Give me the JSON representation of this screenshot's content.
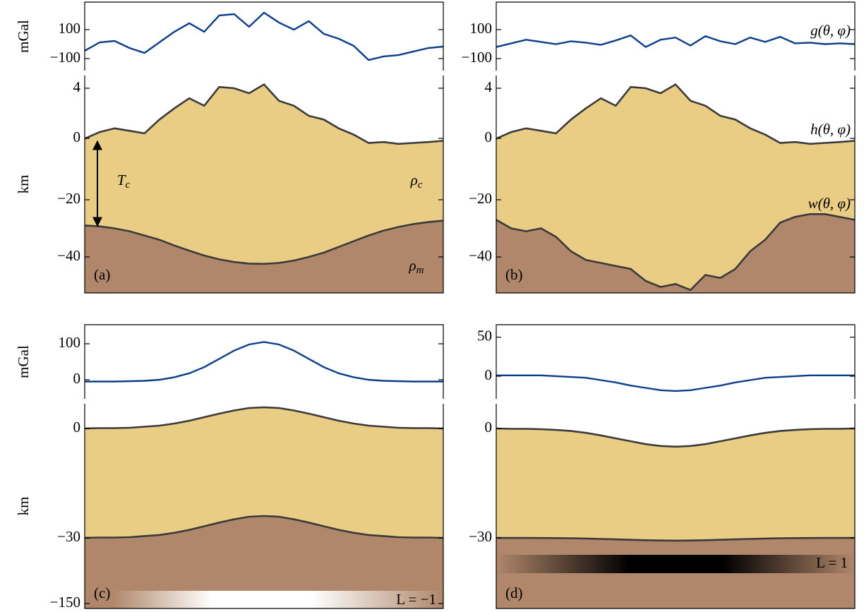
{
  "chart_data": [
    {
      "type": "line",
      "ylabel": "mGal",
      "ylim": [
        -183,
        290
      ],
      "yticks": [
        {
          "value": -100,
          "label": "−100"
        },
        100
      ],
      "series": [
        {
          "color": "#0b3d8c",
          "values": [
            -46,
            12,
            22,
            -27,
            -61,
            12,
            85,
            144,
            85,
            198,
            207,
            120,
            217,
            149,
            100,
            159,
            71,
            37,
            -12,
            -110,
            -85,
            -76,
            -51,
            -27,
            -17
          ]
        }
      ]
    },
    {
      "type": "layers",
      "ylabel": "km",
      "label": "(a)",
      "ylim": [
        -52,
        5
      ],
      "yticks": [
        {
          "value": -40,
          "label": "−40"
        },
        {
          "value": -20,
          "label": "−20"
        },
        0,
        4
      ],
      "series": [
        {
          "color": "#3a3a3a",
          "fill": "#e9cd85",
          "values": [
            -0.1,
            0.5,
            0.8,
            0.6,
            0.4,
            1.5,
            2.4,
            3.2,
            2.6,
            4.1,
            4.0,
            3.6,
            4.3,
            3.0,
            2.6,
            1.8,
            1.5,
            0.8,
            0.3,
            -1.5,
            -1.2,
            -1.8,
            -1.5,
            -1.2,
            -0.8
          ]
        },
        {
          "color": "#3a3a3a",
          "fill": "#b0876a",
          "values": [
            -29,
            -29.3,
            -30,
            -31,
            -32.5,
            -34,
            -36,
            -37.8,
            -39.5,
            -40.8,
            -41.7,
            -42.2,
            -42.3,
            -42,
            -41.2,
            -40,
            -38.5,
            -36.5,
            -34.5,
            -32.5,
            -30.8,
            -29.5,
            -28.5,
            -27.8,
            -27.3
          ]
        }
      ],
      "annotations": [
        {
          "base": "T",
          "sub": "c"
        },
        {
          "base": "ρ",
          "sub": "c"
        },
        {
          "base": "ρ",
          "sub": "m"
        }
      ]
    },
    {
      "type": "line",
      "ylim": [
        -183,
        290
      ],
      "yticks": [
        {
          "value": -100,
          "label": "−100"
        },
        100
      ],
      "series": [
        {
          "name": "g(θ, φ)",
          "color": "#0b3d8c",
          "values": [
            -20,
            5,
            30,
            15,
            0,
            20,
            10,
            -5,
            25,
            60,
            -20,
            30,
            45,
            -10,
            55,
            20,
            0,
            45,
            15,
            50,
            5,
            10,
            0,
            5,
            0
          ]
        }
      ]
    },
    {
      "type": "layers",
      "label": "(b)",
      "ylim": [
        -52,
        5
      ],
      "yticks": [
        {
          "value": -40,
          "label": "−40"
        },
        {
          "value": -20,
          "label": "−20"
        },
        0,
        4
      ],
      "series": [
        {
          "name": "h(θ, φ)",
          "color": "#3a3a3a",
          "fill": "#e9cd85",
          "values": [
            -0.1,
            0.5,
            0.8,
            0.6,
            0.4,
            1.5,
            2.4,
            3.2,
            2.6,
            4.1,
            4.0,
            3.6,
            4.3,
            3.0,
            2.6,
            1.8,
            1.5,
            0.8,
            0.3,
            -1.5,
            -1.2,
            -1.8,
            -1.5,
            -1.2,
            -0.8
          ]
        },
        {
          "name": "w(θ, φ)",
          "color": "#3a3a3a",
          "fill": "#b0876a",
          "values": [
            -27,
            -30,
            -31,
            -30,
            -33,
            -38,
            -41,
            -42,
            -43,
            -44,
            -48,
            -50,
            -49,
            -51,
            -46,
            -47,
            -44,
            -38,
            -34,
            -28,
            -26,
            -25,
            -25,
            -26,
            -27
          ]
        }
      ]
    },
    {
      "type": "line",
      "ylabel": "mGal",
      "ylim": [
        -53,
        153
      ],
      "yticks": [
        0,
        100
      ],
      "series": [
        {
          "color": "#0b3d8c",
          "values": [
            -5,
            -5,
            -5,
            -4,
            -3,
            0,
            7,
            18,
            35,
            58,
            81,
            98,
            105,
            98,
            81,
            58,
            35,
            18,
            7,
            0,
            -3,
            -4,
            -5,
            -5,
            -5
          ]
        }
      ]
    },
    {
      "type": "layers",
      "ylabel": "km",
      "label": "(c)",
      "ylim": [
        -159,
        7
      ],
      "yticks": [
        {
          "value": -150,
          "label": "−150"
        },
        {
          "value": -30,
          "label": "−30"
        },
        0
      ],
      "series": [
        {
          "color": "#3a3a3a",
          "fill": "#e9cd85",
          "values": [
            0,
            0.1,
            0.1,
            0.2,
            0.5,
            0.8,
            1.4,
            2.2,
            3.2,
            4.2,
            5.1,
            5.8,
            6,
            5.8,
            5.1,
            4.2,
            3.2,
            2.2,
            1.4,
            0.8,
            0.5,
            0.2,
            0.1,
            0.1,
            0
          ]
        },
        {
          "color": "#3a3a3a",
          "fill": "#b0876a",
          "values": [
            -30,
            -29.9,
            -29.9,
            -29.8,
            -29.5,
            -29.2,
            -28.6,
            -27.8,
            -26.8,
            -25.8,
            -24.9,
            -24.2,
            -24,
            -24.2,
            -24.9,
            -25.8,
            -26.8,
            -27.8,
            -28.6,
            -29.2,
            -29.5,
            -29.8,
            -29.9,
            -29.9,
            -30
          ]
        }
      ],
      "annotations": [
        "L = −1"
      ]
    },
    {
      "type": "line",
      "ylim": [
        -29,
        66
      ],
      "yticks": [
        0,
        50
      ],
      "series": [
        {
          "color": "#0b3d8c",
          "values": [
            1,
            1,
            1,
            1,
            0,
            -1,
            -2,
            -5,
            -8,
            -12,
            -15,
            -18,
            -19,
            -18,
            -15,
            -12,
            -8,
            -5,
            -2,
            -1,
            0,
            1,
            1,
            1,
            1
          ]
        }
      ]
    },
    {
      "type": "layers",
      "label": "(d)",
      "ylim": [
        -159,
        7
      ],
      "yticks": [
        {
          "value": -30,
          "label": "−30"
        },
        0
      ],
      "series": [
        {
          "color": "#3a3a3a",
          "fill": "#e9cd85",
          "values": [
            0,
            -0.1,
            -0.1,
            -0.2,
            -0.4,
            -0.7,
            -1.2,
            -1.9,
            -2.7,
            -3.5,
            -4.3,
            -4.8,
            -5,
            -4.8,
            -4.3,
            -3.5,
            -2.7,
            -1.9,
            -1.2,
            -0.7,
            -0.4,
            -0.2,
            -0.1,
            -0.1,
            0
          ]
        },
        {
          "color": "#3a3a3a",
          "fill": "#b0876a",
          "values": [
            -30,
            -30.1,
            -30.1,
            -30.2,
            -30.4,
            -30.7,
            -31.2,
            -31.9,
            -32.7,
            -33.5,
            -34.3,
            -34.8,
            -35,
            -34.8,
            -34.3,
            -33.5,
            -32.7,
            -31.9,
            -31.2,
            -30.7,
            -30.4,
            -30.2,
            -30.1,
            -30.1,
            -30
          ]
        }
      ],
      "annotations": [
        "L = 1"
      ]
    }
  ]
}
